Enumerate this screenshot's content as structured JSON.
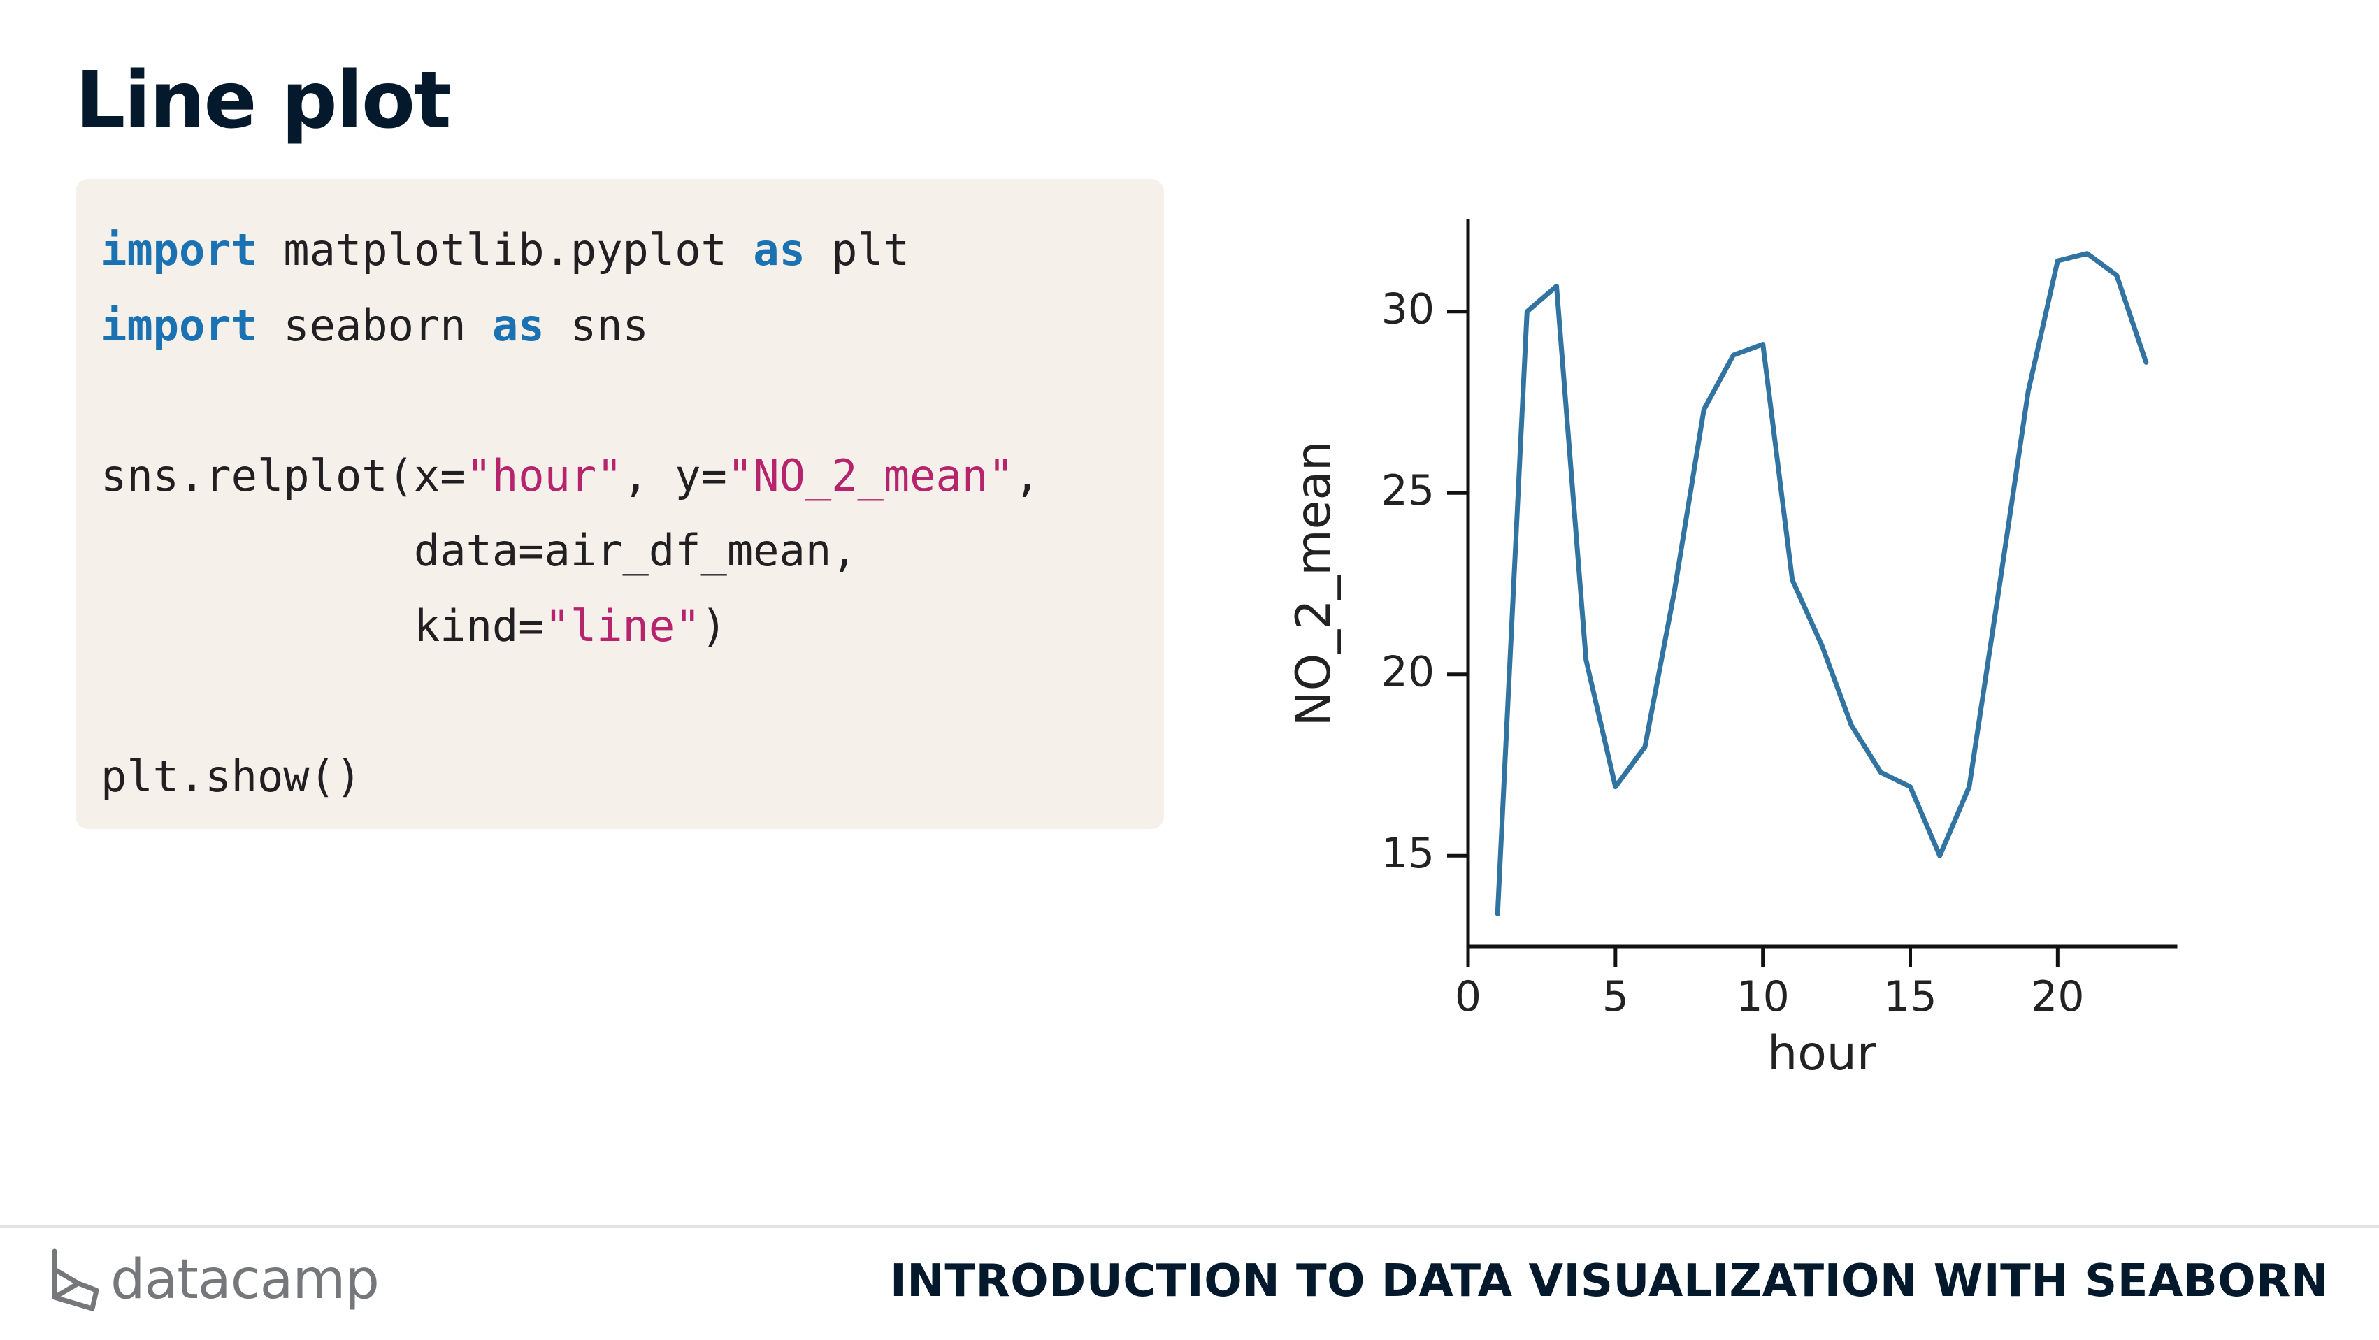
{
  "slide": {
    "title": "Line plot"
  },
  "code": {
    "lines": [
      [
        {
          "t": "import",
          "c": "kw"
        },
        {
          "t": " matplotlib.pyplot "
        },
        {
          "t": "as",
          "c": "kw"
        },
        {
          "t": " plt"
        }
      ],
      [
        {
          "t": "import",
          "c": "kw"
        },
        {
          "t": " seaborn "
        },
        {
          "t": "as",
          "c": "kw"
        },
        {
          "t": " sns"
        }
      ],
      [],
      [
        {
          "t": "sns.relplot(x="
        },
        {
          "t": "\"hour\"",
          "c": "str"
        },
        {
          "t": ", y="
        },
        {
          "t": "\"NO_2_mean\"",
          "c": "str"
        },
        {
          "t": ","
        }
      ],
      [
        {
          "t": "            data=air_df_mean,"
        }
      ],
      [
        {
          "t": "            kind="
        },
        {
          "t": "\"line\"",
          "c": "str"
        },
        {
          "t": ")"
        }
      ],
      [],
      [
        {
          "t": "plt.show()"
        }
      ]
    ]
  },
  "chart_data": {
    "type": "line",
    "title": "",
    "xlabel": "hour",
    "ylabel": "NO_2_mean",
    "xlim": [
      0,
      24
    ],
    "ylim": [
      12.5,
      32.5
    ],
    "xticks": [
      0,
      5,
      10,
      15,
      20
    ],
    "yticks": [
      15,
      20,
      25,
      30
    ],
    "grid": false,
    "line_color": "#3274a1",
    "series": [
      {
        "x": [
          1,
          2,
          3,
          4,
          5,
          6,
          7,
          8,
          9,
          10,
          11,
          12,
          13,
          14,
          15,
          16,
          17,
          18,
          19,
          20,
          21,
          22,
          23
        ],
        "values": [
          13.4,
          30.0,
          30.7,
          20.4,
          16.9,
          18.0,
          22.3,
          27.3,
          28.8,
          29.1,
          22.6,
          20.8,
          18.6,
          17.3,
          16.9,
          15.0,
          16.9,
          22.3,
          27.8,
          31.4,
          31.6,
          31.0,
          28.6
        ]
      }
    ]
  },
  "footer": {
    "brand": "datacamp",
    "course": "INTRODUCTION TO DATA VISUALIZATION WITH SEABORN"
  },
  "icons": {
    "logo": "datacamp-logo-icon"
  }
}
